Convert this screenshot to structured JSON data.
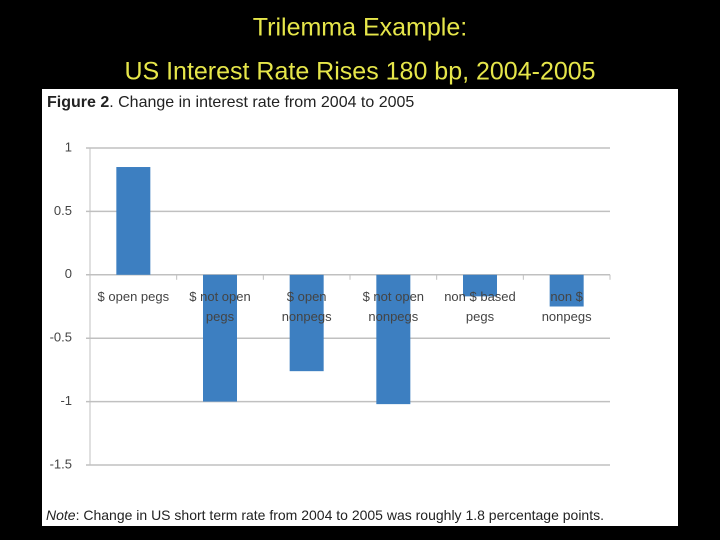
{
  "header": {
    "title_line1": "Trilemma Example:",
    "title_line2": "US Interest Rate Rises 180 bp, 2004-2005"
  },
  "chart_data": {
    "type": "bar",
    "figure_label": "Figure 2",
    "title": ". Change in interest rate from 2004 to 2005",
    "categories": [
      "$ open pegs",
      "$ not open pegs",
      "$ open nonpegs",
      "$ not open nonpegs",
      "non $ based pegs",
      "non $ nonpegs"
    ],
    "values": [
      0.85,
      -1.0,
      -0.76,
      -1.02,
      -0.17,
      -0.25
    ],
    "color": "#3d7fc1",
    "ylim": [
      -1.5,
      1
    ],
    "yticks": [
      1,
      0.5,
      0,
      -0.5,
      -1,
      -1.5
    ],
    "grid": true,
    "note_label": "Note",
    "note": ": Change in US short term rate from 2004 to 2005 was roughly 1.8 percentage points."
  }
}
